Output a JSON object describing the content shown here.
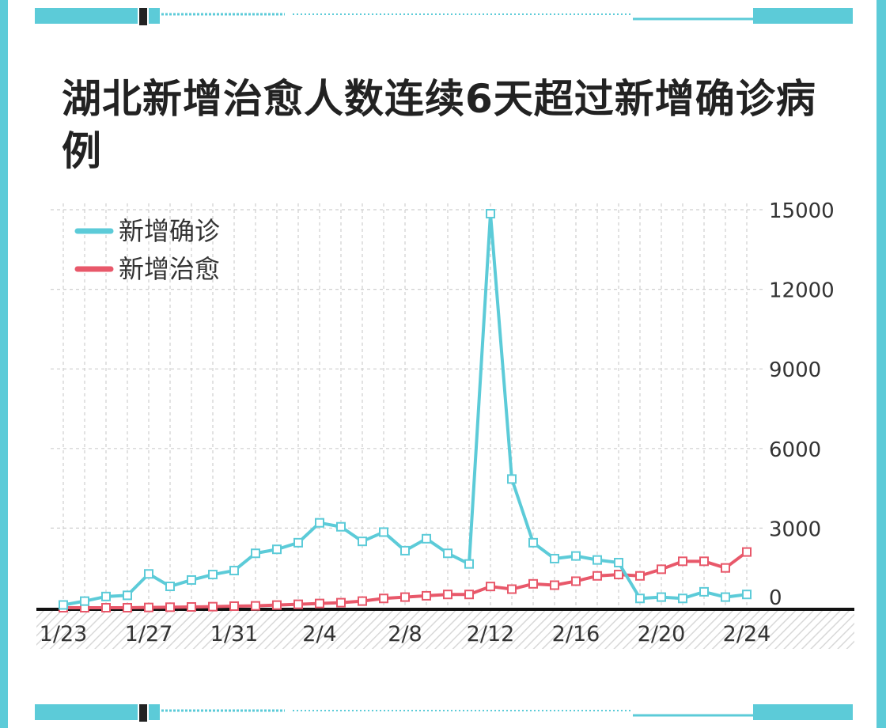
{
  "chart_data": {
    "type": "line",
    "title": "湖北新增治愈人数连续6天超过新增确诊病例",
    "x_tick_labels": [
      "1/23",
      "1/27",
      "1/31",
      "2/4",
      "2/8",
      "2/12",
      "2/16",
      "2/20",
      "2/24"
    ],
    "y_tick_labels": [
      "0",
      "3000",
      "6000",
      "9000",
      "12000",
      "15000"
    ],
    "ylim": [
      0,
      15000
    ],
    "y_axis_position": "right",
    "grid": true,
    "legend_position": "top-left",
    "x": [
      "1/23",
      "1/24",
      "1/25",
      "1/26",
      "1/27",
      "1/28",
      "1/29",
      "1/30",
      "1/31",
      "2/1",
      "2/2",
      "2/3",
      "2/4",
      "2/5",
      "2/6",
      "2/7",
      "2/8",
      "2/9",
      "2/10",
      "2/11",
      "2/12",
      "2/13",
      "2/14",
      "2/15",
      "2/16",
      "2/17",
      "2/18",
      "2/19",
      "2/20",
      "2/21",
      "2/22",
      "2/23",
      "2/24"
    ],
    "series": [
      {
        "name": "新增确诊",
        "color": "#5ccbd8",
        "values": [
          105,
          249,
          423,
          466,
          1275,
          804,
          1045,
          1250,
          1400,
          2050,
          2200,
          2450,
          3200,
          3050,
          2500,
          2850,
          2150,
          2600,
          2050,
          1650,
          14850,
          4850,
          2450,
          1850,
          1950,
          1800,
          1700,
          350,
          400,
          350,
          600,
          400,
          500
        ]
      },
      {
        "name": "新增治愈",
        "color": "#e8586a",
        "values": [
          0,
          0,
          0,
          0,
          10,
          20,
          30,
          40,
          60,
          70,
          100,
          130,
          160,
          190,
          250,
          350,
          400,
          450,
          500,
          500,
          800,
          700,
          900,
          850,
          1000,
          1200,
          1250,
          1200,
          1450,
          1750,
          1750,
          1500,
          2100
        ]
      }
    ]
  }
}
